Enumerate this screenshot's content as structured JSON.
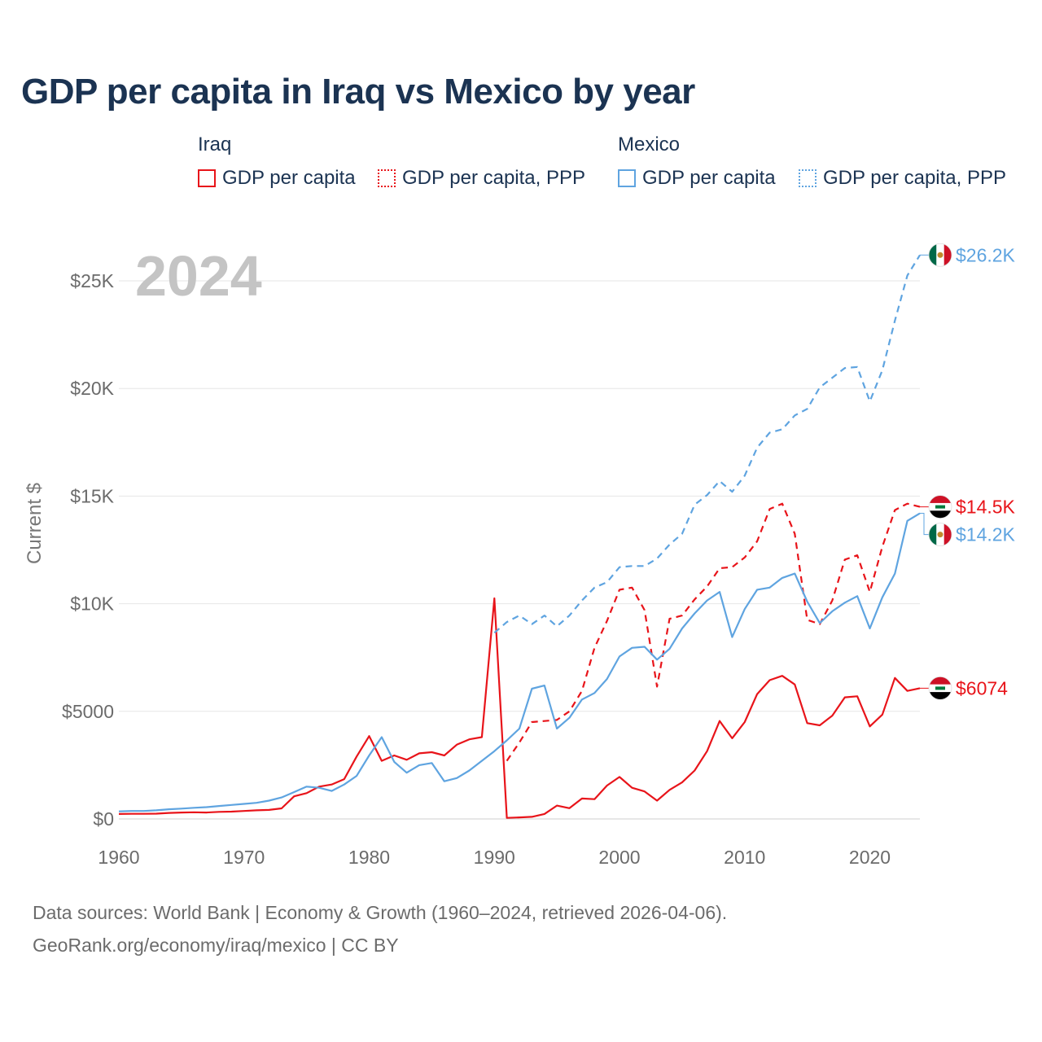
{
  "title": "GDP per capita in Iraq vs Mexico by year",
  "legend": {
    "groups": [
      {
        "name": "Iraq",
        "items": [
          {
            "label": "GDP per capita",
            "style": "solid",
            "color": "#e8141a"
          },
          {
            "label": "GDP per capita, PPP",
            "style": "dotted",
            "color": "#e8141a"
          }
        ]
      },
      {
        "name": "Mexico",
        "items": [
          {
            "label": "GDP per capita",
            "style": "solid",
            "color": "#5fa4e0"
          },
          {
            "label": "GDP per capita, PPP",
            "style": "dotted",
            "color": "#5fa4e0"
          }
        ]
      }
    ]
  },
  "year_watermark": "2024",
  "footer": {
    "line1": "Data sources: World Bank | Economy & Growth (1960–2024, retrieved 2026-04-06).",
    "line2": "GeoRank.org/economy/iraq/mexico | CC BY"
  },
  "chart_data": {
    "type": "line",
    "title": "GDP per capita in Iraq vs Mexico by year",
    "xlabel": "",
    "ylabel": "Current $",
    "xlim": [
      1960,
      2024
    ],
    "ylim": [
      0,
      27000
    ],
    "x_ticks": [
      1960,
      1970,
      1980,
      1990,
      2000,
      2010,
      2020
    ],
    "y_ticks": [
      {
        "value": 0,
        "label": "$0"
      },
      {
        "value": 5000,
        "label": "$5000"
      },
      {
        "value": 10000,
        "label": "$10K"
      },
      {
        "value": 15000,
        "label": "$15K"
      },
      {
        "value": 20000,
        "label": "$20K"
      },
      {
        "value": 25000,
        "label": "$25K"
      }
    ],
    "grid": true,
    "series": [
      {
        "name": "Iraq GDP per capita",
        "country": "Iraq",
        "color": "#e8141a",
        "dash": "solid",
        "start_year": 1960,
        "values": [
          230,
          240,
          240,
          245,
          280,
          300,
          310,
          300,
          330,
          340,
          370,
          400,
          420,
          490,
          1050,
          1200,
          1500,
          1600,
          1850,
          2900,
          3850,
          2700,
          2950,
          2750,
          3050,
          3100,
          2950,
          3450,
          3700,
          3800,
          10250,
          50,
          70,
          100,
          230,
          620,
          500,
          950,
          920,
          1550,
          1950,
          1450,
          1280,
          850,
          1350,
          1700,
          2250,
          3150,
          4550,
          3750,
          4500,
          5800,
          6450,
          6650,
          6250,
          4450,
          4350,
          4800,
          5650,
          5700,
          4300,
          4850,
          6550,
          5950,
          6074
        ],
        "end_label": "$6074"
      },
      {
        "name": "Iraq GDP per capita, PPP",
        "country": "Iraq",
        "color": "#e8141a",
        "dash": "dashed",
        "start_year": 1991,
        "values": [
          2700,
          3550,
          4500,
          4550,
          4600,
          5000,
          5950,
          7950,
          9200,
          10650,
          10750,
          9700,
          6150,
          9300,
          9450,
          10200,
          10800,
          11650,
          11700,
          12150,
          12900,
          14400,
          14650,
          13250,
          9250,
          9050,
          10150,
          12050,
          12250,
          10550,
          12650,
          14350,
          14650,
          14500
        ],
        "end_label": "$14.5K"
      },
      {
        "name": "Mexico GDP per capita",
        "country": "Mexico",
        "color": "#5fa4e0",
        "dash": "solid",
        "start_year": 1960,
        "values": [
          350,
          370,
          370,
          400,
          450,
          480,
          520,
          550,
          600,
          650,
          700,
          750,
          850,
          1000,
          1250,
          1500,
          1450,
          1300,
          1600,
          2000,
          2950,
          3800,
          2650,
          2150,
          2500,
          2600,
          1750,
          1900,
          2250,
          2700,
          3150,
          3650,
          4200,
          6050,
          6200,
          4200,
          4700,
          5550,
          5850,
          6500,
          7550,
          7950,
          8000,
          7400,
          7900,
          8850,
          9550,
          10150,
          10550,
          8450,
          9750,
          10650,
          10750,
          11200,
          11400,
          10100,
          9100,
          9650,
          10050,
          10350,
          8850,
          10300,
          11400,
          13850,
          14200
        ],
        "end_label": "$14.2K"
      },
      {
        "name": "Mexico GDP per capita, PPP",
        "country": "Mexico",
        "color": "#5fa4e0",
        "dash": "dashed",
        "start_year": 1990,
        "values": [
          8650,
          9150,
          9450,
          9050,
          9450,
          8950,
          9450,
          10150,
          10750,
          11000,
          11700,
          11750,
          11750,
          12100,
          12750,
          13250,
          14600,
          15050,
          15700,
          15200,
          15950,
          17250,
          17950,
          18100,
          18750,
          19050,
          20050,
          20500,
          20950,
          21000,
          19400,
          20850,
          23150,
          25250,
          26200
        ],
        "end_label": "$26.2K"
      }
    ]
  }
}
